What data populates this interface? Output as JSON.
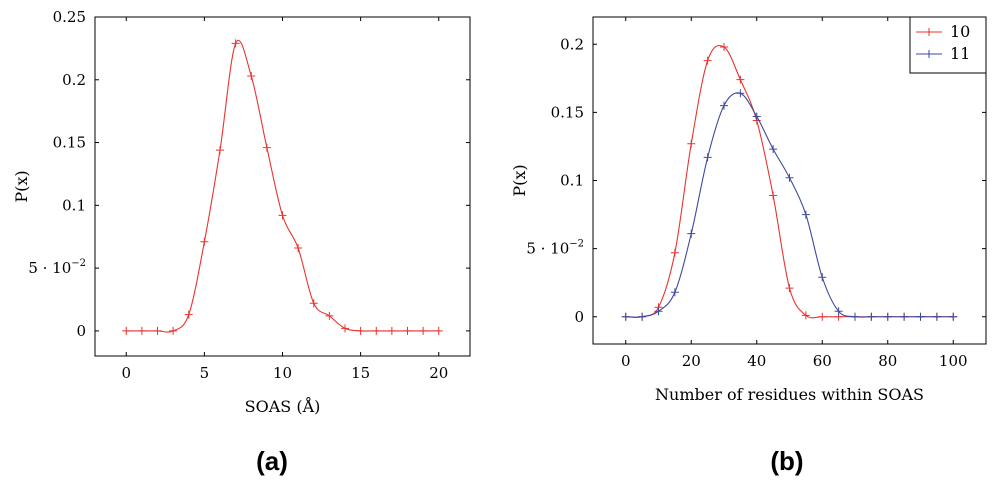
{
  "panels": [
    {
      "label": "(a)"
    },
    {
      "label": "(b)"
    }
  ],
  "chart_data": [
    {
      "type": "line",
      "xlabel": "SOAS (Å)",
      "ylabel": "P(x)",
      "xlim": [
        -2,
        22
      ],
      "ylim": [
        -0.02,
        0.25
      ],
      "xticks": [
        0,
        5,
        10,
        15,
        20
      ],
      "yticks": [
        0,
        0.05,
        0.1,
        0.15,
        0.2,
        0.25
      ],
      "ytick_labels": [
        "0",
        "5 · 10",
        "0.1",
        "0.15",
        "0.2",
        "0.25"
      ],
      "ytick_exponent": "−2",
      "grid": false,
      "legend": null,
      "series": [
        {
          "color": "#e8332f",
          "marker": "plus",
          "x": [
            0,
            1,
            2,
            3,
            4,
            5,
            6,
            7,
            8,
            9,
            10,
            11,
            12,
            13,
            14,
            15,
            16,
            17,
            18,
            19,
            20
          ],
          "y": [
            0,
            0,
            0,
            0,
            0.013,
            0.071,
            0.144,
            0.229,
            0.203,
            0.146,
            0.092,
            0.066,
            0.022,
            0.012,
            0.002,
            0,
            0,
            0,
            0,
            0,
            0
          ]
        }
      ]
    },
    {
      "type": "line",
      "xlabel": "Number of residues within SOAS",
      "ylabel": "P(x)",
      "xlim": [
        -10,
        110
      ],
      "ylim": [
        -0.02,
        0.22
      ],
      "xticks": [
        0,
        20,
        40,
        60,
        80,
        100
      ],
      "yticks": [
        0,
        0.05,
        0.1,
        0.15,
        0.2
      ],
      "ytick_labels": [
        "0",
        "5 · 10",
        "0.1",
        "0.15",
        "0.2"
      ],
      "ytick_exponent": "−2",
      "grid": false,
      "legend": "top-right",
      "series": [
        {
          "name": "10",
          "color": "#e8332f",
          "marker": "plus",
          "x": [
            0,
            5,
            10,
            15,
            20,
            25,
            30,
            35,
            40,
            45,
            50,
            55,
            60,
            65,
            70,
            75,
            80,
            85,
            90,
            95,
            100
          ],
          "y": [
            0,
            0,
            0.007,
            0.047,
            0.127,
            0.188,
            0.198,
            0.174,
            0.144,
            0.089,
            0.021,
            0.001,
            0,
            0,
            0,
            0,
            0,
            0,
            0,
            0,
            0
          ]
        },
        {
          "name": "11",
          "color": "#3d4a9b",
          "marker": "plus",
          "x": [
            0,
            5,
            10,
            15,
            20,
            25,
            30,
            35,
            40,
            45,
            50,
            55,
            60,
            65,
            70,
            75,
            80,
            85,
            90,
            95,
            100
          ],
          "y": [
            0,
            0,
            0.004,
            0.018,
            0.061,
            0.117,
            0.155,
            0.164,
            0.147,
            0.123,
            0.102,
            0.075,
            0.029,
            0.004,
            0,
            0,
            0,
            0,
            0,
            0,
            0
          ]
        }
      ]
    }
  ]
}
